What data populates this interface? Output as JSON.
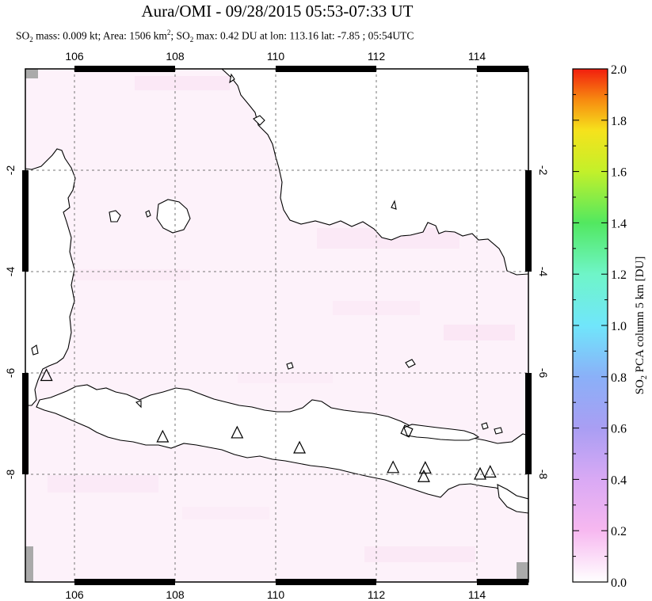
{
  "title": "Aura/OMI - 09/28/2015 05:53-07:33 UT",
  "subtitle": {
    "p1": "SO",
    "s1": "2",
    "p2": " mass: 0.009 kt; Area: 1506 km",
    "s2": "2",
    "p3": "; SO",
    "s3": "2",
    "p4": " max: 0.42 DU at lon: 113.16 lat: -7.85 ; 05:54UTC"
  },
  "map": {
    "lon_range": [
      105,
      115
    ],
    "lat_range": [
      -10.2,
      0.0
    ],
    "lon_ticks": [
      "106",
      "108",
      "110",
      "112",
      "114"
    ],
    "lat_ticks": [
      "-2",
      "-4",
      "-6",
      "-8"
    ],
    "volcano_marker": "triangle-outline",
    "volcanoes": [
      {
        "lon": 105.42,
        "lat": -6.1
      },
      {
        "lon": 107.73,
        "lat": -7.32
      },
      {
        "lon": 109.21,
        "lat": -7.24
      },
      {
        "lon": 110.45,
        "lat": -7.54
      },
      {
        "lon": 112.31,
        "lat": -7.93
      },
      {
        "lon": 112.95,
        "lat": -7.94
      },
      {
        "lon": 112.92,
        "lat": -8.11
      },
      {
        "lon": 114.04,
        "lat": -8.06
      },
      {
        "lon": 114.24,
        "lat": -8.02
      }
    ],
    "max_location": {
      "lon": 113.16,
      "lat": -7.85
    },
    "land_color": "#ffffff",
    "background_tint": "#fdf3fa"
  },
  "colorbar": {
    "label": "SO2 PCA column 5 km [DU]",
    "label_parts": {
      "a": "SO",
      "b": "2",
      "c": " PCA column 5 km [DU]"
    },
    "ticks": [
      "0.0",
      "0.2",
      "0.4",
      "0.6",
      "0.8",
      "1.0",
      "1.2",
      "1.4",
      "1.6",
      "1.8",
      "2.0"
    ],
    "range": [
      0.0,
      2.0
    ],
    "colors": [
      "#ffffff",
      "#f7b8f0",
      "#b9a2f2",
      "#8aa0f6",
      "#70d8f8",
      "#6ff5d8",
      "#52e860",
      "#b3ef2e",
      "#f6f21c",
      "#f78a10",
      "#f21e0e"
    ]
  }
}
